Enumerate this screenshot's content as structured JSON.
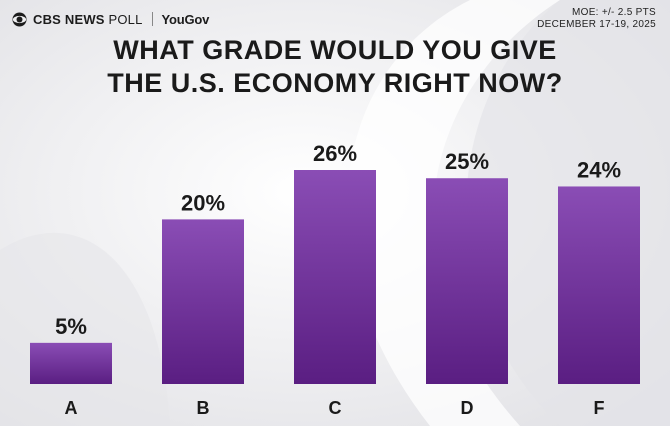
{
  "header": {
    "brand": "CBS NEWS",
    "brand_suffix": "POLL",
    "partner": "YouGov",
    "moe": "MOE: +/- 2.5 PTS",
    "dates": "DECEMBER 17-19, 2025"
  },
  "colors": {
    "bar_top": "#8a4db5",
    "bar_bottom": "#5a1e82",
    "background": "#efeff1"
  },
  "chart_data": {
    "type": "bar",
    "title": "WHAT GRADE WOULD YOU GIVE THE U.S. ECONOMY RIGHT NOW?",
    "title_lines": [
      "WHAT GRADE WOULD YOU GIVE",
      "THE U.S. ECONOMY RIGHT NOW?"
    ],
    "categories": [
      "A",
      "B",
      "C",
      "D",
      "F"
    ],
    "values": [
      5,
      20,
      26,
      25,
      24
    ],
    "value_labels": [
      "5%",
      "20%",
      "26%",
      "25%",
      "24%"
    ],
    "xlabel": "",
    "ylabel": "",
    "ylim": [
      0,
      26
    ],
    "grid": false,
    "legend": "none"
  }
}
